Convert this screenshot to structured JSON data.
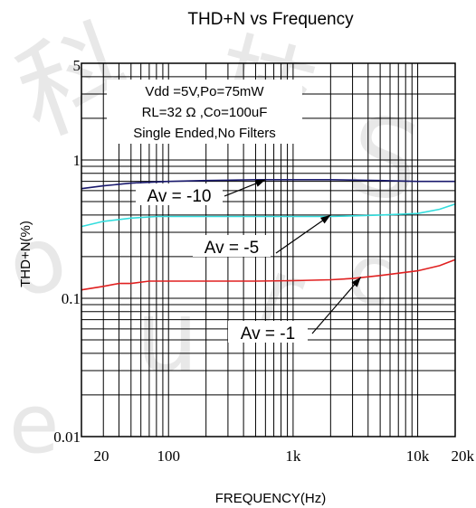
{
  "chart_data": {
    "type": "line",
    "title": "THD+N vs Frequency",
    "xlabel": "FREQUENCY(Hz)",
    "ylabel": "THD+N(%)",
    "x_scale": "log",
    "y_scale": "log",
    "xlim": [
      20,
      20000
    ],
    "ylim": [
      0.01,
      5
    ],
    "x_ticks": [
      {
        "value": 20,
        "label": "20"
      },
      {
        "value": 100,
        "label": "100"
      },
      {
        "value": 1000,
        "label": "1k"
      },
      {
        "value": 10000,
        "label": "10k"
      },
      {
        "value": 20000,
        "label": "20k"
      }
    ],
    "y_ticks": [
      {
        "value": 5,
        "label": "5"
      },
      {
        "value": 1,
        "label": "1"
      },
      {
        "value": 0.1,
        "label": "0.1"
      },
      {
        "value": 0.01,
        "label": "0.01"
      }
    ],
    "grid": true,
    "conditions": [
      "Vdd =5V,Po=75mW",
      "RL=32 Ω ,Co=100uF",
      "Single Ended,No Filters"
    ],
    "series": [
      {
        "name": "Av = -10",
        "color": "#1a1a6e",
        "x": [
          20,
          30,
          50,
          100,
          200,
          500,
          1000,
          2000,
          5000,
          10000,
          20000
        ],
        "y": [
          0.62,
          0.65,
          0.68,
          0.7,
          0.71,
          0.72,
          0.72,
          0.72,
          0.71,
          0.7,
          0.7
        ]
      },
      {
        "name": "Av = -5",
        "color": "#33dddd",
        "x": [
          20,
          30,
          50,
          80,
          100,
          200,
          500,
          1000,
          2000,
          5000,
          10000,
          15000,
          20000
        ],
        "y": [
          0.33,
          0.36,
          0.38,
          0.39,
          0.39,
          0.39,
          0.39,
          0.39,
          0.39,
          0.4,
          0.41,
          0.44,
          0.48
        ]
      },
      {
        "name": "Av = -1",
        "color": "#e02020",
        "x": [
          20,
          30,
          40,
          50,
          70,
          100,
          200,
          500,
          1000,
          2000,
          3000,
          5000,
          10000,
          15000,
          20000
        ],
        "y": [
          0.115,
          0.122,
          0.128,
          0.128,
          0.133,
          0.133,
          0.133,
          0.133,
          0.134,
          0.136,
          0.139,
          0.146,
          0.158,
          0.172,
          0.19
        ]
      }
    ],
    "annotations": [
      {
        "label": "Av = -10",
        "series": 0,
        "x": 600,
        "y": 0.72
      },
      {
        "label": "Av = -5",
        "series": 1,
        "x": 2000,
        "y": 0.4
      },
      {
        "label": "Av = -1",
        "series": 2,
        "x": 3500,
        "y": 0.142
      }
    ]
  },
  "watermark": [
    "科",
    "技",
    "S",
    "o",
    "u",
    "r",
    "c",
    "e"
  ]
}
